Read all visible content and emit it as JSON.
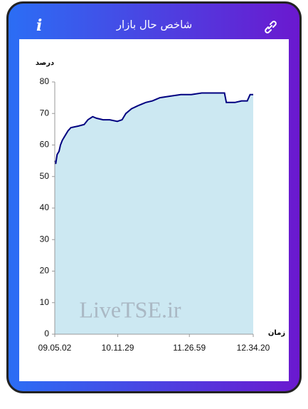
{
  "header": {
    "info_icon": "i",
    "title": "شاخص حال بازار"
  },
  "chart_data": {
    "type": "area",
    "y_label": "درصد",
    "x_label": "زمان",
    "watermark": "LiveTSE.ir",
    "line_color": "#000080",
    "fill_color": "#cce8f2",
    "x": [
      "09.05.02",
      "09.06.00",
      "09.07.30",
      "09.09.30",
      "09.11.00",
      "09.13.00",
      "09.16.00",
      "09.19.00",
      "09.22.00",
      "09.30.00",
      "09.36.00",
      "09.40.00",
      "09.45.00",
      "09.49.00",
      "09.56.00",
      "10.03.00",
      "10.11.00",
      "10.16.00",
      "10.20.00",
      "10.26.00",
      "10.33.00",
      "10.41.00",
      "10.48.00",
      "10.56.00",
      "11.07.00",
      "11.18.00",
      "11.29.00",
      "11.40.00",
      "11.52.00",
      "12.04.00",
      "12.06.00",
      "12.15.00",
      "12.22.00",
      "12.28.00",
      "12.31.00",
      "12.34.20"
    ],
    "values": [
      55,
      54,
      57,
      58,
      60,
      61.5,
      63,
      64.5,
      65.5,
      66,
      66.5,
      68,
      69,
      68.5,
      68,
      68,
      67.5,
      68,
      70,
      71.5,
      72.5,
      73.5,
      74,
      75,
      75.5,
      76,
      76,
      76.5,
      76.5,
      76.5,
      73.5,
      73.5,
      74,
      74,
      76,
      76
    ],
    "xlim": [
      "09.05.02",
      "12.34.20"
    ],
    "xticks": [
      "09.05.02",
      "10.11.29",
      "11.26.59",
      "12.34.20"
    ],
    "ylim": [
      0,
      80
    ],
    "yticks": [
      0,
      10,
      20,
      30,
      40,
      50,
      60,
      70,
      80
    ]
  }
}
